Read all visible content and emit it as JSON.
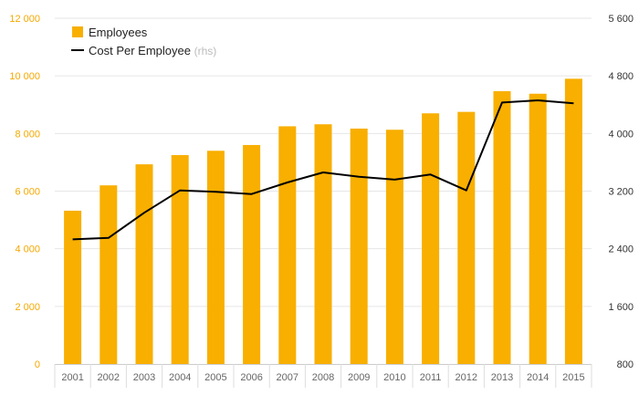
{
  "chart_data": {
    "type": "bar",
    "categories": [
      "2001",
      "2002",
      "2003",
      "2004",
      "2005",
      "2006",
      "2007",
      "2008",
      "2009",
      "2010",
      "2011",
      "2012",
      "2013",
      "2014",
      "2015"
    ],
    "series": [
      {
        "name": "Employees",
        "type": "bar",
        "axis": "left",
        "color": "#F8AF00",
        "values": [
          5320,
          6200,
          6930,
          7250,
          7400,
          7600,
          8250,
          8320,
          8170,
          8130,
          8700,
          8750,
          9470,
          9380,
          9900
        ]
      },
      {
        "name": "Cost Per Employee",
        "type": "line",
        "axis": "right",
        "color": "#000000",
        "values": [
          2530,
          2550,
          2900,
          3210,
          3190,
          3160,
          3320,
          3460,
          3400,
          3360,
          3430,
          3210,
          4430,
          4460,
          4420
        ]
      }
    ],
    "legend": {
      "position": "top-left",
      "items": [
        {
          "label": "Employees",
          "suffix": ""
        },
        {
          "label": "Cost Per Employee",
          "suffix": "(rhs)"
        }
      ]
    },
    "y_left": {
      "range": [
        0,
        12000
      ],
      "ticks": [
        0,
        2000,
        4000,
        6000,
        8000,
        10000,
        12000
      ],
      "tick_labels": [
        "0",
        "2 000",
        "4 000",
        "6 000",
        "8 000",
        "10 000",
        "12 000"
      ],
      "color": "#F5A800"
    },
    "y_right": {
      "range": [
        800,
        5600
      ],
      "ticks": [
        800,
        1600,
        2400,
        3200,
        4000,
        4800,
        5600
      ],
      "tick_labels": [
        "800",
        "1 600",
        "2 400",
        "3 200",
        "4 000",
        "4 800",
        "5 600"
      ],
      "color": "#333333"
    },
    "grid": true
  }
}
